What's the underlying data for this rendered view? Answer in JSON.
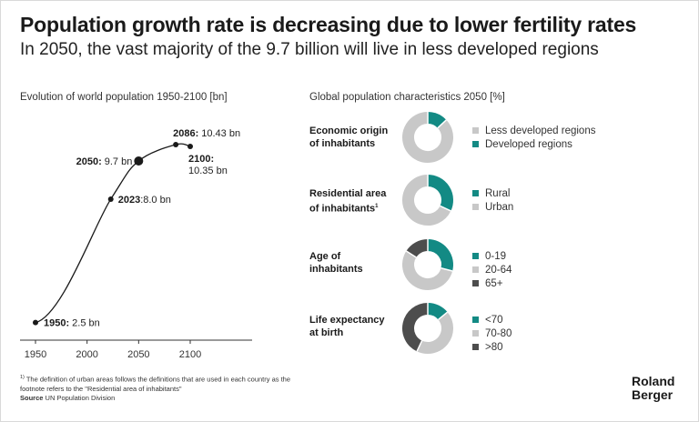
{
  "title": "Population growth rate is decreasing due to lower fertility rates",
  "subtitle": "In 2050, the vast majority of the 9.7 billion will live in less developed regions",
  "left_panel_title": "Evolution of world population 1950-2100 [bn]",
  "right_panel_title": "Global population characteristics 2050 [%]",
  "colors": {
    "teal": "#138a84",
    "light_gray": "#c8c8c8",
    "dark_gray": "#4d4d4d",
    "line": "#1a1a1a"
  },
  "chart_data": [
    {
      "type": "line",
      "title": "Evolution of world population 1950-2100 [bn]",
      "xlabel": "",
      "ylabel": "",
      "x_ticks": [
        1950,
        2000,
        2050,
        2100
      ],
      "xlim": [
        1935,
        2160
      ],
      "ylim": [
        2.0,
        11.2
      ],
      "series": [
        {
          "name": "World population",
          "x": [
            1950,
            2023,
            2050,
            2086,
            2100
          ],
          "values": [
            2.5,
            8.0,
            9.7,
            10.43,
            10.35
          ]
        }
      ],
      "annotations": [
        {
          "year_label": "1950:",
          "value_label": "2.5 bn",
          "highlight": false
        },
        {
          "year_label": "2023",
          "value_label": ":8.0 bn",
          "highlight": false
        },
        {
          "year_label": "2050:",
          "value_label": "9.7 bn",
          "highlight": true
        },
        {
          "year_label": "2086:",
          "value_label": "10.43 bn",
          "highlight": false
        },
        {
          "year_label": "2100:",
          "value_label": "10.35 bn",
          "highlight": false
        }
      ]
    },
    {
      "type": "pie",
      "title": "Economic origin of inhabitants",
      "labels": [
        "Developed regions",
        "Less developed regions"
      ],
      "values": [
        13,
        87
      ]
    },
    {
      "type": "pie",
      "title": "Residential area of inhabitants",
      "labels": [
        "Rural",
        "Urban"
      ],
      "values": [
        32,
        68
      ]
    },
    {
      "type": "pie",
      "title": "Age of inhabitants",
      "labels": [
        "0-19",
        "20-64",
        "65+"
      ],
      "values": [
        29,
        55,
        16
      ]
    },
    {
      "type": "pie",
      "title": "Life expectancy at birth",
      "labels": [
        "<70",
        "70-80",
        ">80"
      ],
      "values": [
        14,
        43,
        43
      ]
    }
  ],
  "donuts": [
    {
      "label_line1": "Economic origin",
      "label_line2": "of inhabitants",
      "footnote_mark": "",
      "legend": [
        {
          "label": "Less developed regions",
          "color": "#c8c8c8"
        },
        {
          "label": "Developed regions",
          "color": "#138a84"
        }
      ]
    },
    {
      "label_line1": "Residential area",
      "label_line2": "of inhabitants",
      "footnote_mark": "1",
      "legend": [
        {
          "label": "Rural",
          "color": "#138a84"
        },
        {
          "label": "Urban",
          "color": "#c8c8c8"
        }
      ]
    },
    {
      "label_line1": "Age of",
      "label_line2": "inhabitants",
      "footnote_mark": "",
      "legend": [
        {
          "label": "0-19",
          "color": "#138a84"
        },
        {
          "label": "20-64",
          "color": "#c8c8c8"
        },
        {
          "label": "65+",
          "color": "#4d4d4d"
        }
      ]
    },
    {
      "label_line1": "Life expectancy",
      "label_line2": "at birth",
      "footnote_mark": "",
      "legend": [
        {
          "label": "<70",
          "color": "#138a84"
        },
        {
          "label": "70-80",
          "color": "#c8c8c8"
        },
        {
          "label": ">80",
          "color": "#4d4d4d"
        }
      ]
    }
  ],
  "footnote_mark": "1)",
  "footnote": "The definition of urban areas follows the definitions that are used in each country as the footnote refers to the \"Residential area of inhabitants\"",
  "source_label": "Source",
  "source_text": "UN Population Division",
  "logo_line1": "Roland",
  "logo_line2": "Berger"
}
